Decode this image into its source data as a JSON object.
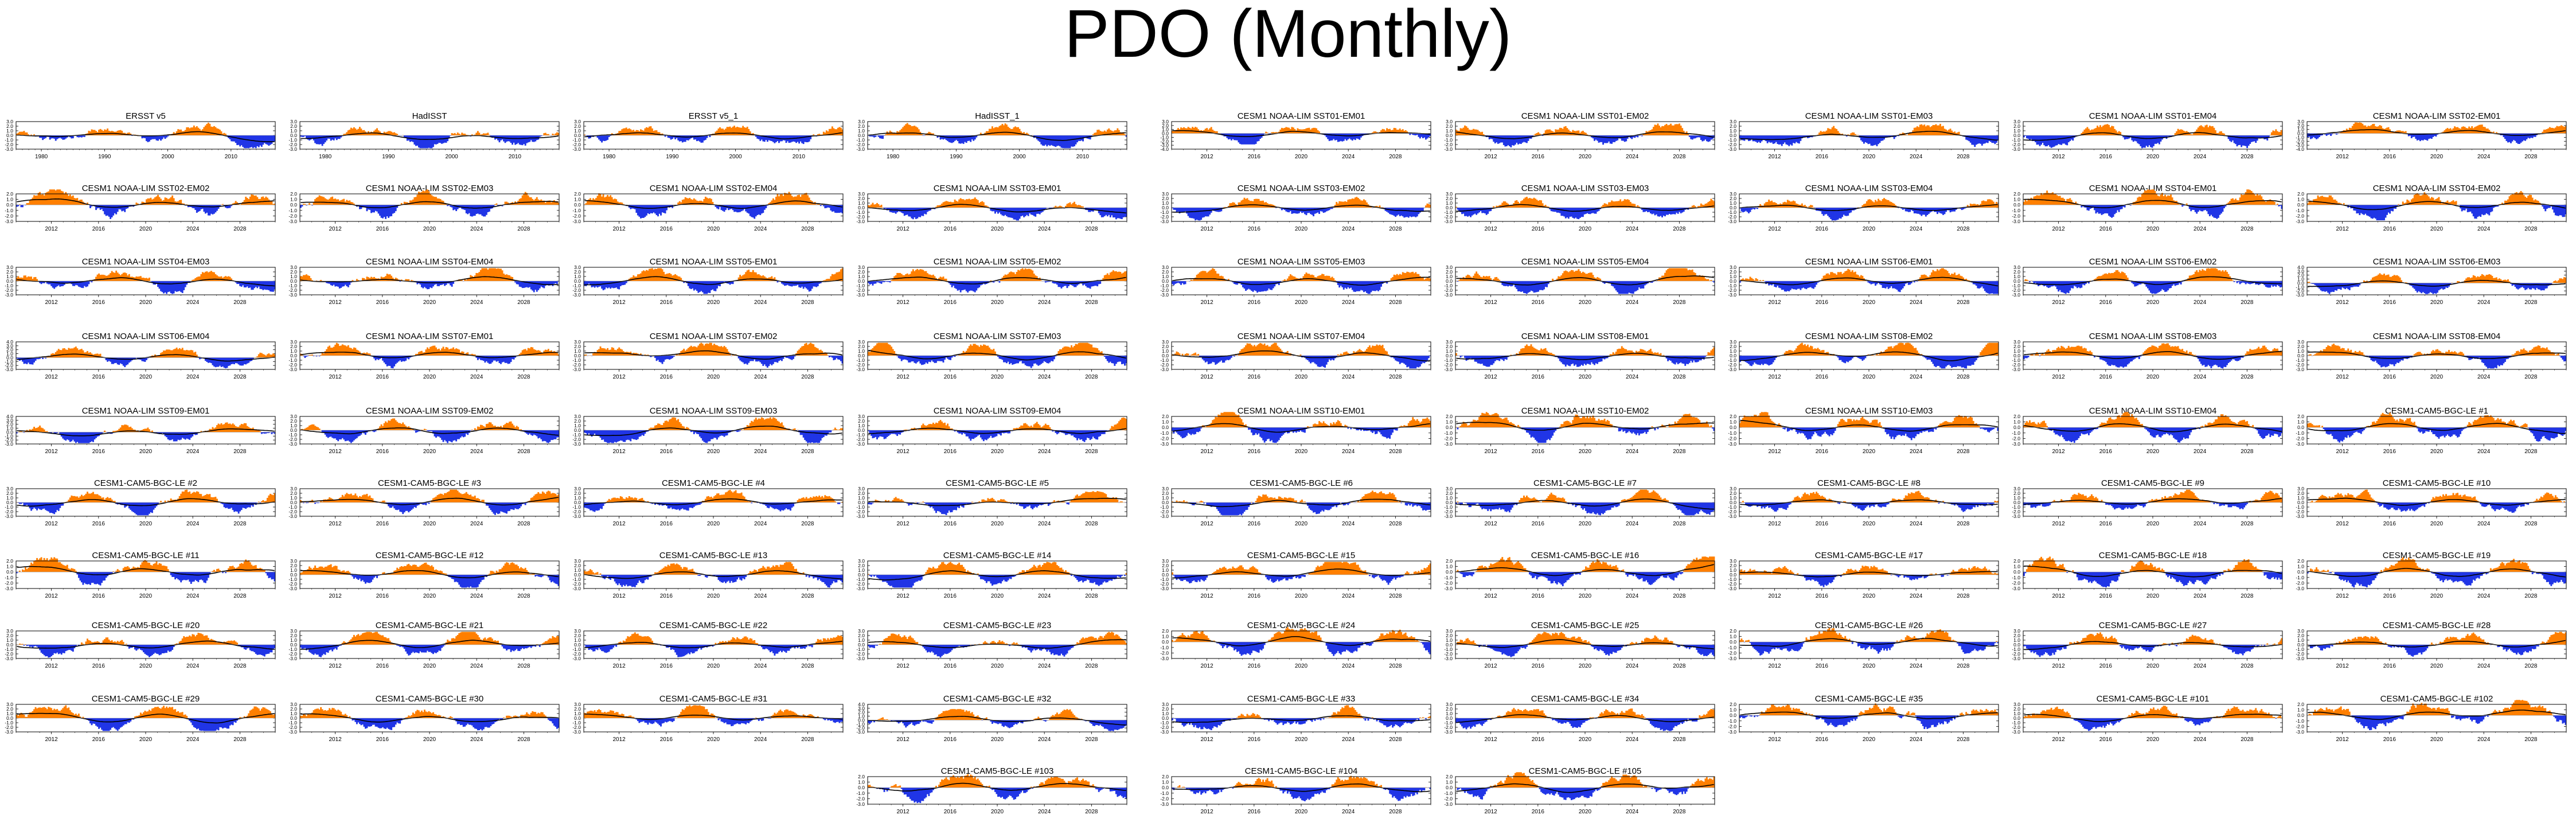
{
  "title": "PDO (Monthly)",
  "colors": {
    "positive": "#ff7f00",
    "negative": "#2035e6",
    "trend": "#000000",
    "zero": "#999999"
  },
  "chart_data": {
    "type": "area",
    "title": "PDO (Monthly)",
    "observations": {
      "x_range": [
        1976,
        2017
      ],
      "x_ticks": [
        "1980",
        "1990",
        "2000",
        "2010"
      ],
      "y_ticks": [
        "3.0",
        "2.0",
        "1.0",
        "0.0",
        "-1.0",
        "-2.0",
        "-3.0"
      ],
      "ylim": [
        -3.0,
        3.0
      ]
    },
    "models": {
      "x_range": [
        2009,
        2031
      ],
      "x_ticks": [
        "2012",
        "2016",
        "2020",
        "2024",
        "2028"
      ]
    },
    "y_tick_sets": {
      "a": [
        "3.0",
        "2.0",
        "1.0",
        "0.0",
        "-1.0",
        "-2.0",
        "-3.0"
      ],
      "b": [
        "2.0",
        "1.0",
        "0.0",
        "-1.0",
        "-2.0",
        "-3.0"
      ],
      "c": [
        "3.0",
        "2.0",
        "1.0",
        "0.0",
        "-1.0",
        "-2.0",
        "-3.0",
        "-4.0"
      ],
      "d": [
        "4.0",
        "3.0",
        "2.0",
        "1.0",
        "0.0",
        "-1.0",
        "-2.0",
        "-3.0"
      ]
    },
    "panels": [
      {
        "title": "ERSST v5",
        "ticks": "a"
      },
      {
        "title": "HadISST",
        "ticks": "a"
      },
      {
        "title": "ERSST v5_1",
        "ticks": "a"
      },
      {
        "title": "HadISST_1",
        "ticks": "a"
      },
      {
        "title": "CESM1 NOAA-LIM SST01-EM01",
        "ticks": "c"
      },
      {
        "title": "CESM1 NOAA-LIM SST01-EM02",
        "ticks": "a"
      },
      {
        "title": "CESM1 NOAA-LIM SST01-EM03",
        "ticks": "a"
      },
      {
        "title": "CESM1 NOAA-LIM SST01-EM04",
        "ticks": "a"
      },
      {
        "title": "CESM1 NOAA-LIM SST02-EM01",
        "ticks": "c"
      },
      {
        "title": "CESM1 NOAA-LIM SST02-EM02",
        "ticks": "b"
      },
      {
        "title": "CESM1 NOAA-LIM SST02-EM03",
        "ticks": "b"
      },
      {
        "title": "CESM1 NOAA-LIM SST02-EM04",
        "ticks": "b"
      },
      {
        "title": "CESM1 NOAA-LIM SST03-EM01",
        "ticks": "a"
      },
      {
        "title": "CESM1 NOAA-LIM SST03-EM02",
        "ticks": "a"
      },
      {
        "title": "CESM1 NOAA-LIM SST03-EM03",
        "ticks": "a"
      },
      {
        "title": "CESM1 NOAA-LIM SST03-EM04",
        "ticks": "a"
      },
      {
        "title": "CESM1 NOAA-LIM SST04-EM01",
        "ticks": "b"
      },
      {
        "title": "CESM1 NOAA-LIM SST04-EM02",
        "ticks": "b"
      },
      {
        "title": "CESM1 NOAA-LIM SST04-EM03",
        "ticks": "a"
      },
      {
        "title": "CESM1 NOAA-LIM SST04-EM04",
        "ticks": "a"
      },
      {
        "title": "CESM1 NOAA-LIM SST05-EM01",
        "ticks": "a"
      },
      {
        "title": "CESM1 NOAA-LIM SST05-EM02",
        "ticks": "a"
      },
      {
        "title": "CESM1 NOAA-LIM SST05-EM03",
        "ticks": "a"
      },
      {
        "title": "CESM1 NOAA-LIM SST05-EM04",
        "ticks": "a"
      },
      {
        "title": "CESM1 NOAA-LIM SST06-EM01",
        "ticks": "a"
      },
      {
        "title": "CESM1 NOAA-LIM SST06-EM02",
        "ticks": "a"
      },
      {
        "title": "CESM1 NOAA-LIM SST06-EM03",
        "ticks": "d"
      },
      {
        "title": "CESM1 NOAA-LIM SST06-EM04",
        "ticks": "d"
      },
      {
        "title": "CESM1 NOAA-LIM SST07-EM01",
        "ticks": "a"
      },
      {
        "title": "CESM1 NOAA-LIM SST07-EM02",
        "ticks": "a"
      },
      {
        "title": "CESM1 NOAA-LIM SST07-EM03",
        "ticks": "a"
      },
      {
        "title": "CESM1 NOAA-LIM SST07-EM04",
        "ticks": "a"
      },
      {
        "title": "CESM1 NOAA-LIM SST08-EM01",
        "ticks": "a"
      },
      {
        "title": "CESM1 NOAA-LIM SST08-EM02",
        "ticks": "a"
      },
      {
        "title": "CESM1 NOAA-LIM SST08-EM03",
        "ticks": "a"
      },
      {
        "title": "CESM1 NOAA-LIM SST08-EM04",
        "ticks": "a"
      },
      {
        "title": "CESM1 NOAA-LIM SST09-EM01",
        "ticks": "d"
      },
      {
        "title": "CESM1 NOAA-LIM SST09-EM02",
        "ticks": "a"
      },
      {
        "title": "CESM1 NOAA-LIM SST09-EM03",
        "ticks": "a"
      },
      {
        "title": "CESM1 NOAA-LIM SST09-EM04",
        "ticks": "a"
      },
      {
        "title": "CESM1 NOAA-LIM SST10-EM01",
        "ticks": "b"
      },
      {
        "title": "CESM1 NOAA-LIM SST10-EM02",
        "ticks": "b"
      },
      {
        "title": "CESM1 NOAA-LIM SST10-EM03",
        "ticks": "b"
      },
      {
        "title": "CESM1 NOAA-LIM SST10-EM04",
        "ticks": "b"
      },
      {
        "title": "CESM1-CAM5-BGC-LE #1",
        "ticks": "b"
      },
      {
        "title": "CESM1-CAM5-BGC-LE #2",
        "ticks": "a"
      },
      {
        "title": "CESM1-CAM5-BGC-LE #3",
        "ticks": "a"
      },
      {
        "title": "CESM1-CAM5-BGC-LE #4",
        "ticks": "a"
      },
      {
        "title": "CESM1-CAM5-BGC-LE #5",
        "ticks": "a"
      },
      {
        "title": "CESM1-CAM5-BGC-LE #6",
        "ticks": "a"
      },
      {
        "title": "CESM1-CAM5-BGC-LE #7",
        "ticks": "a"
      },
      {
        "title": "CESM1-CAM5-BGC-LE #8",
        "ticks": "a"
      },
      {
        "title": "CESM1-CAM5-BGC-LE #9",
        "ticks": "a"
      },
      {
        "title": "CESM1-CAM5-BGC-LE #10",
        "ticks": "a"
      },
      {
        "title": "CESM1-CAM5-BGC-LE #11",
        "ticks": "b"
      },
      {
        "title": "CESM1-CAM5-BGC-LE #12",
        "ticks": "a"
      },
      {
        "title": "CESM1-CAM5-BGC-LE #13",
        "ticks": "a"
      },
      {
        "title": "CESM1-CAM5-BGC-LE #14",
        "ticks": "a"
      },
      {
        "title": "CESM1-CAM5-BGC-LE #15",
        "ticks": "a"
      },
      {
        "title": "CESM1-CAM5-BGC-LE #16",
        "ticks": "b"
      },
      {
        "title": "CESM1-CAM5-BGC-LE #17",
        "ticks": "a"
      },
      {
        "title": "CESM1-CAM5-BGC-LE #18",
        "ticks": "b"
      },
      {
        "title": "CESM1-CAM5-BGC-LE #19",
        "ticks": "b"
      },
      {
        "title": "CESM1-CAM5-BGC-LE #20",
        "ticks": "a"
      },
      {
        "title": "CESM1-CAM5-BGC-LE #21",
        "ticks": "a"
      },
      {
        "title": "CESM1-CAM5-BGC-LE #22",
        "ticks": "a"
      },
      {
        "title": "CESM1-CAM5-BGC-LE #23",
        "ticks": "a"
      },
      {
        "title": "CESM1-CAM5-BGC-LE #24",
        "ticks": "b"
      },
      {
        "title": "CESM1-CAM5-BGC-LE #25",
        "ticks": "a"
      },
      {
        "title": "CESM1-CAM5-BGC-LE #26",
        "ticks": "b"
      },
      {
        "title": "CESM1-CAM5-BGC-LE #27",
        "ticks": "a"
      },
      {
        "title": "CESM1-CAM5-BGC-LE #28",
        "ticks": "a"
      },
      {
        "title": "CESM1-CAM5-BGC-LE #29",
        "ticks": "a"
      },
      {
        "title": "CESM1-CAM5-BGC-LE #30",
        "ticks": "a"
      },
      {
        "title": "CESM1-CAM5-BGC-LE #31",
        "ticks": "a"
      },
      {
        "title": "CESM1-CAM5-BGC-LE #32",
        "ticks": "d"
      },
      {
        "title": "CESM1-CAM5-BGC-LE #33",
        "ticks": "a"
      },
      {
        "title": "CESM1-CAM5-BGC-LE #34",
        "ticks": "a"
      },
      {
        "title": "CESM1-CAM5-BGC-LE #35",
        "ticks": "b"
      },
      {
        "title": "CESM1-CAM5-BGC-LE #101",
        "ticks": "a"
      },
      {
        "title": "CESM1-CAM5-BGC-LE #102",
        "ticks": "b"
      },
      {
        "title": "CESM1-CAM5-BGC-LE #103",
        "ticks": "b"
      },
      {
        "title": "CESM1-CAM5-BGC-LE #104",
        "ticks": "b"
      },
      {
        "title": "CESM1-CAM5-BGC-LE #105",
        "ticks": "b"
      }
    ]
  }
}
